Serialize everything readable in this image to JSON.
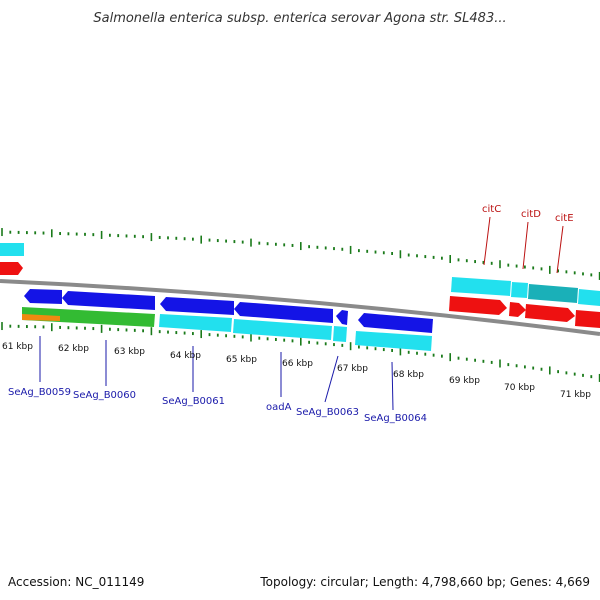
{
  "title": "Salmonella enterica subsp. enterica serovar Agona str. SL483...",
  "footer": {
    "accession": "Accession: NC_011149",
    "summary": "Topology: circular; Length: 4,798,660 bp; Genes: 4,669"
  },
  "colors": {
    "backbone": "#8a8a8a",
    "tick": "#1a7a1a",
    "blue_gene": "#1414e6",
    "cyan_gene": "#22e0ee",
    "teal_gene": "#1ab0b8",
    "red_gene": "#ee1111",
    "green_gene": "#33bb33",
    "orange_gene": "#f08a10",
    "blue_label": "#1a1aaa",
    "red_label": "#bb1111"
  },
  "scale_labels": [
    "61 kbp",
    "62 kbp",
    "63 kbp",
    "64 kbp",
    "65 kbp",
    "66 kbp",
    "67 kbp",
    "68 kbp",
    "69 kbp",
    "70 kbp",
    "71 kbp"
  ],
  "gene_labels": [
    {
      "text": "SeAg_B0059",
      "color": "blue_label"
    },
    {
      "text": "SeAg_B0060",
      "color": "blue_label"
    },
    {
      "text": "SeAg_B0061",
      "color": "blue_label"
    },
    {
      "text": "oadA",
      "color": "blue_label"
    },
    {
      "text": "SeAg_B0063",
      "color": "blue_label"
    },
    {
      "text": "SeAg_B0064",
      "color": "blue_label"
    },
    {
      "text": "citC",
      "color": "red_label"
    },
    {
      "text": "citD",
      "color": "red_label"
    },
    {
      "text": "citE",
      "color": "red_label"
    }
  ]
}
